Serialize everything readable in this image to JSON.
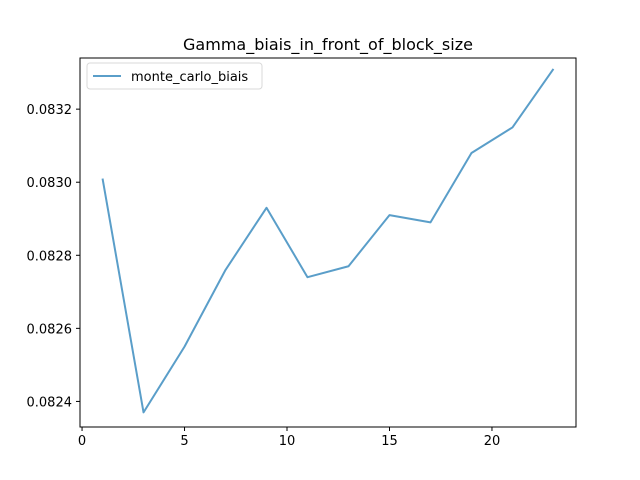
{
  "chart_data": {
    "type": "line",
    "title": "Gamma_biais_in_front_of_block_size",
    "xlabel": "",
    "ylabel": "",
    "xlim": [
      -0.1,
      24.1
    ],
    "ylim": [
      0.08233,
      0.08334
    ],
    "xticks": [
      0,
      5,
      10,
      15,
      20
    ],
    "yticks": [
      0.0824,
      0.0826,
      0.0828,
      0.083,
      0.0832
    ],
    "xtick_labels": [
      "0",
      "5",
      "10",
      "15",
      "20"
    ],
    "ytick_labels": [
      "0.0824",
      "0.0826",
      "0.0828",
      "0.0830",
      "0.0832"
    ],
    "grid": false,
    "legend": {
      "position": "top-left"
    },
    "series": [
      {
        "name": "monte_carlo_biais",
        "color": "#5a9ec9",
        "x": [
          1,
          3,
          5,
          7,
          9,
          11,
          13,
          15,
          17,
          19,
          21,
          23
        ],
        "y": [
          0.08301,
          0.08237,
          0.08255,
          0.08276,
          0.08293,
          0.08274,
          0.08277,
          0.08291,
          0.08289,
          0.08308,
          0.08315,
          0.08331
        ]
      }
    ]
  }
}
